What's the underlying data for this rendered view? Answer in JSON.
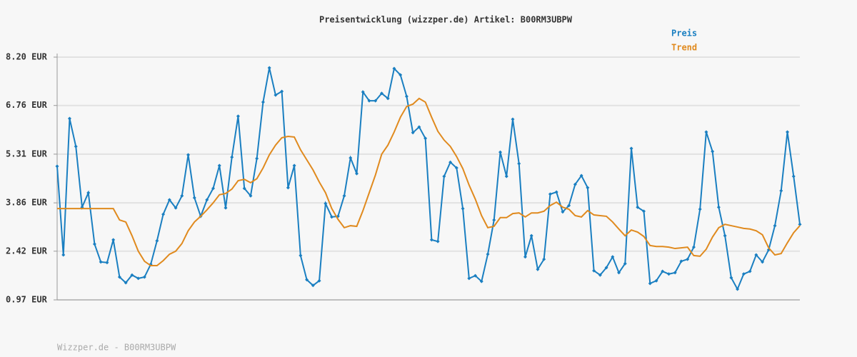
{
  "chart_data": {
    "type": "line",
    "title": "Preisentwicklung (wizzper.de) Artikel: B00RM3UBPW",
    "footer": "Wizzper.de - B00RM3UBPW",
    "ylim": [
      0.97,
      8.2
    ],
    "yticks": [
      {
        "value": 0.97,
        "label": "0.97 EUR"
      },
      {
        "value": 2.42,
        "label": "2.42 EUR"
      },
      {
        "value": 3.86,
        "label": "3.86 EUR"
      },
      {
        "value": 5.31,
        "label": "5.31 EUR"
      },
      {
        "value": 6.76,
        "label": "6.76 EUR"
      },
      {
        "value": 8.2,
        "label": "8.20 EUR"
      }
    ],
    "grid": true,
    "legend": "top-right",
    "series": [
      {
        "name": "Preis",
        "color": "#1a7fc1",
        "markers": true,
        "values": [
          4.95,
          2.31,
          6.37,
          5.54,
          3.73,
          4.16,
          2.63,
          2.1,
          2.08,
          2.76,
          1.65,
          1.48,
          1.71,
          1.61,
          1.65,
          2.03,
          2.73,
          3.52,
          3.95,
          3.71,
          4.07,
          5.29,
          4.01,
          3.46,
          3.95,
          4.29,
          4.97,
          3.71,
          5.22,
          6.44,
          4.29,
          4.07,
          5.18,
          6.86,
          7.88,
          7.07,
          7.18,
          4.31,
          4.97,
          2.29,
          1.57,
          1.4,
          1.54,
          3.84,
          3.44,
          3.46,
          4.07,
          5.2,
          4.73,
          7.16,
          6.9,
          6.9,
          7.12,
          6.97,
          7.86,
          7.67,
          7.03,
          5.95,
          6.12,
          5.78,
          2.76,
          2.71,
          4.65,
          5.07,
          4.9,
          3.69,
          1.61,
          1.69,
          1.52,
          2.33,
          3.35,
          5.37,
          4.65,
          6.35,
          5.03,
          2.25,
          2.88,
          1.88,
          2.18,
          4.12,
          4.18,
          3.59,
          3.78,
          4.41,
          4.67,
          4.31,
          1.84,
          1.71,
          1.93,
          2.25,
          1.78,
          2.05,
          5.48,
          3.73,
          3.61,
          1.46,
          1.54,
          1.82,
          1.74,
          1.78,
          2.12,
          2.18,
          2.54,
          3.67,
          5.97,
          5.39,
          3.73,
          2.88,
          1.63,
          1.29,
          1.74,
          1.82,
          2.31,
          2.1,
          2.46,
          3.18,
          4.22,
          5.97,
          4.65,
          3.22
        ]
      },
      {
        "name": "Trend",
        "color": "#e08a1e",
        "markers": false,
        "values": [
          3.69,
          3.69,
          3.69,
          3.69,
          3.69,
          3.69,
          3.69,
          3.69,
          3.69,
          3.69,
          3.35,
          3.29,
          2.88,
          2.42,
          2.12,
          1.99,
          1.99,
          2.14,
          2.33,
          2.42,
          2.65,
          3.03,
          3.29,
          3.46,
          3.65,
          3.86,
          4.1,
          4.14,
          4.27,
          4.52,
          4.56,
          4.46,
          4.58,
          4.9,
          5.29,
          5.58,
          5.8,
          5.84,
          5.82,
          5.44,
          5.14,
          4.84,
          4.48,
          4.16,
          3.69,
          3.37,
          3.12,
          3.18,
          3.16,
          3.63,
          4.16,
          4.69,
          5.31,
          5.58,
          5.97,
          6.41,
          6.73,
          6.8,
          6.97,
          6.86,
          6.41,
          5.99,
          5.73,
          5.54,
          5.24,
          4.88,
          4.39,
          3.97,
          3.48,
          3.12,
          3.16,
          3.42,
          3.42,
          3.54,
          3.56,
          3.44,
          3.56,
          3.56,
          3.61,
          3.78,
          3.88,
          3.73,
          3.67,
          3.48,
          3.44,
          3.63,
          3.5,
          3.48,
          3.46,
          3.29,
          3.08,
          2.88,
          3.05,
          2.99,
          2.86,
          2.59,
          2.56,
          2.56,
          2.54,
          2.5,
          2.52,
          2.54,
          2.29,
          2.27,
          2.48,
          2.84,
          3.12,
          3.22,
          3.18,
          3.14,
          3.1,
          3.08,
          3.03,
          2.91,
          2.52,
          2.31,
          2.35,
          2.67,
          2.97,
          3.18
        ]
      }
    ]
  }
}
